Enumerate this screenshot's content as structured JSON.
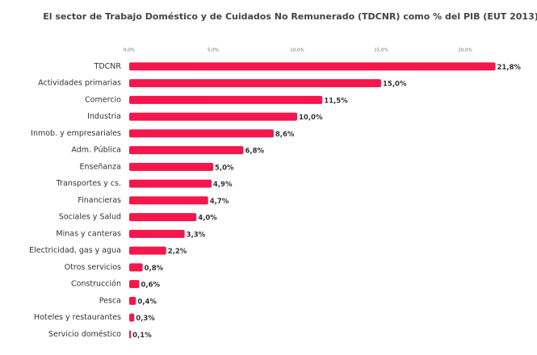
{
  "chart_data": {
    "type": "bar",
    "orientation": "horizontal",
    "title": "El sector de Trabajo Doméstico y de Cuidados No Remunerado (TDCNR) como % del PIB (EUT 2013)",
    "categories": [
      "TDCNR",
      "Actividades primarias",
      "Comercio",
      "Industria",
      "Inmob. y empresariales",
      "Adm. Pública",
      "Enseñanza",
      "Transportes y cs.",
      "Financieras",
      "Sociales y Salud",
      "Minas y canteras",
      "Electricidad, gas y agua",
      "Otros servicios",
      "Construcción",
      "Pesca",
      "Hoteles y restaurantes",
      "Servicio doméstico"
    ],
    "values": [
      21.8,
      15.0,
      11.5,
      10.0,
      8.6,
      6.8,
      5.0,
      4.9,
      4.7,
      4.0,
      3.3,
      2.2,
      0.8,
      0.6,
      0.4,
      0.3,
      0.1
    ],
    "value_labels": [
      "21,8%",
      "15,0%",
      "11,5%",
      "10,0%",
      "8,6%",
      "6,8%",
      "5,0%",
      "4,9%",
      "4,7%",
      "4,0%",
      "3,3%",
      "2,2%",
      "0,8%",
      "0,6%",
      "0,4%",
      "0,3%",
      "0,1%"
    ],
    "color": "#f5164b",
    "xlim": [
      0,
      22
    ],
    "xticks": [
      {
        "value": 0,
        "label": "0,0%"
      },
      {
        "value": 5,
        "label": "5,0%"
      },
      {
        "value": 10,
        "label": "10,0%"
      },
      {
        "value": 15,
        "label": "15,0%"
      },
      {
        "value": 20,
        "label": "20,0%"
      }
    ],
    "grid": false
  }
}
